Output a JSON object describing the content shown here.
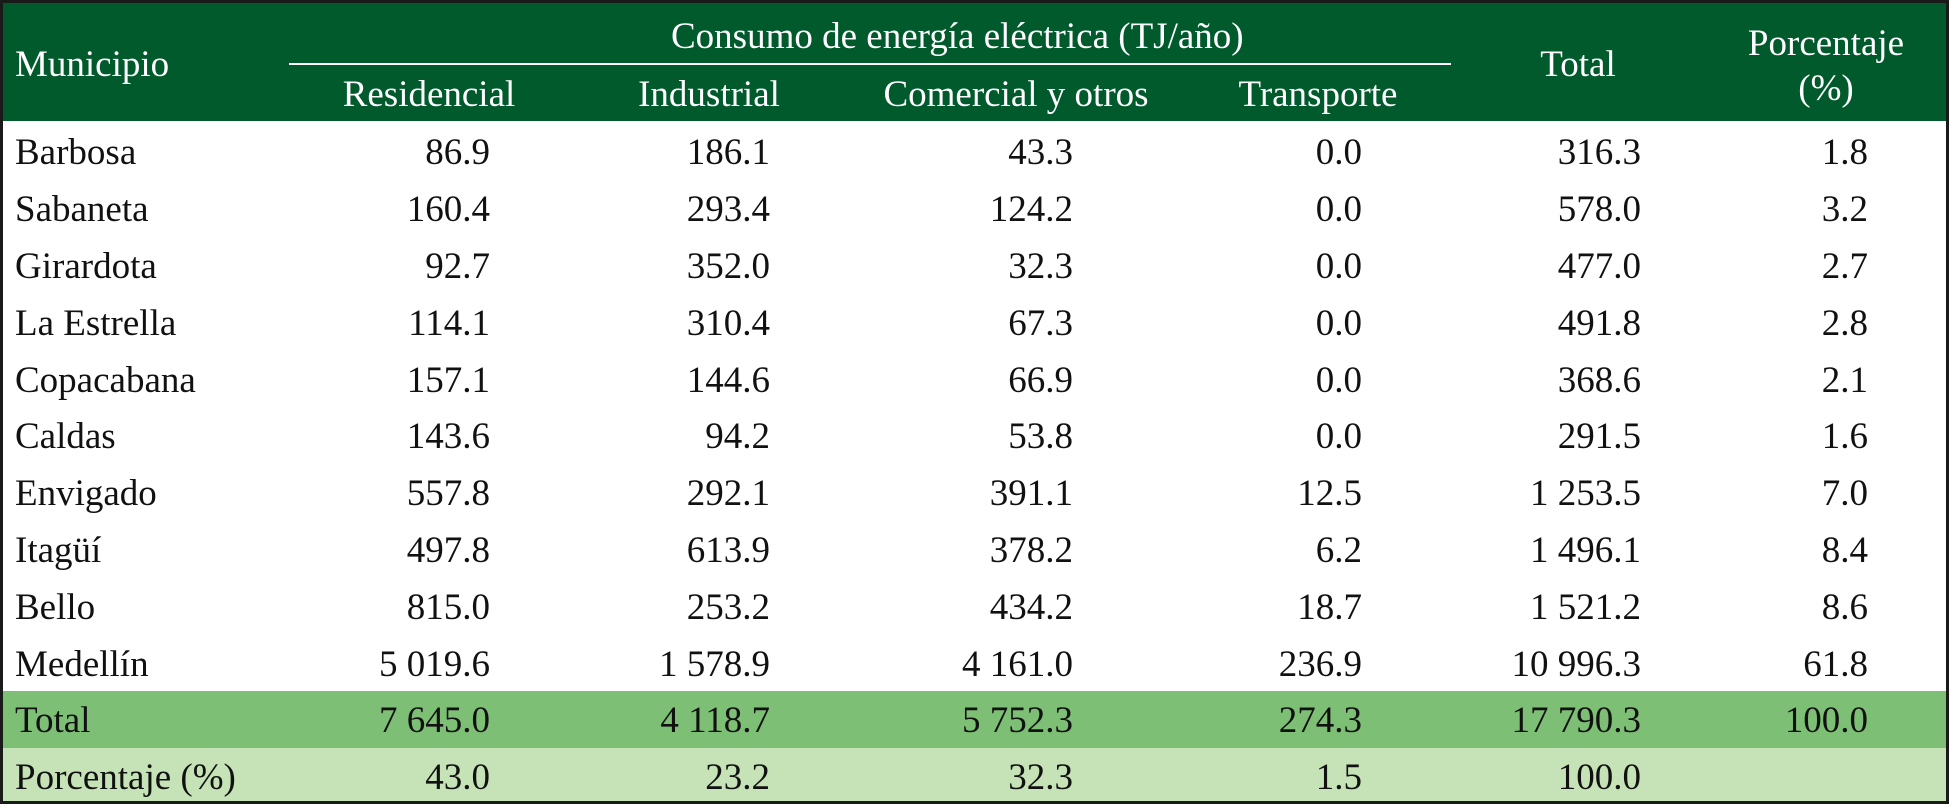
{
  "table": {
    "header": {
      "municipality": "Municipio",
      "group_title": "Consumo de energía eléctrica (TJ/año)",
      "columns": [
        "Residencial",
        "Industrial",
        "Comercial y otros",
        "Transporte"
      ],
      "total": "Total",
      "percentage": "Porcentaje (%)"
    },
    "rows": [
      [
        "Barbosa",
        "86.9",
        "186.1",
        "43.3",
        "0.0",
        "316.3",
        "1.8"
      ],
      [
        "Sabaneta",
        "160.4",
        "293.4",
        "124.2",
        "0.0",
        "578.0",
        "3.2"
      ],
      [
        "Girardota",
        "92.7",
        "352.0",
        "32.3",
        "0.0",
        "477.0",
        "2.7"
      ],
      [
        "La Estrella",
        "114.1",
        "310.4",
        "67.3",
        "0.0",
        "491.8",
        "2.8"
      ],
      [
        "Copacabana",
        "157.1",
        "144.6",
        "66.9",
        "0.0",
        "368.6",
        "2.1"
      ],
      [
        "Caldas",
        "143.6",
        "94.2",
        "53.8",
        "0.0",
        "291.5",
        "1.6"
      ],
      [
        "Envigado",
        "557.8",
        "292.1",
        "391.1",
        "12.5",
        "1 253.5",
        "7.0"
      ],
      [
        "Itagüí",
        "497.8",
        "613.9",
        "378.2",
        "6.2",
        "1 496.1",
        "8.4"
      ],
      [
        "Bello",
        "815.0",
        "253.2",
        "434.2",
        "18.7",
        "1 521.2",
        "8.6"
      ],
      [
        "Medellín",
        "5 019.6",
        "1 578.9",
        "4 161.0",
        "236.9",
        "10 996.3",
        "61.8"
      ]
    ],
    "total_row": [
      "Total",
      "7 645.0",
      "4 118.7",
      "5 752.3",
      "274.3",
      "17 790.3",
      "100.0"
    ],
    "percentage_row": [
      "Porcentaje (%)",
      "43.0",
      "23.2",
      "32.3",
      "1.5",
      "100.0"
    ]
  }
}
